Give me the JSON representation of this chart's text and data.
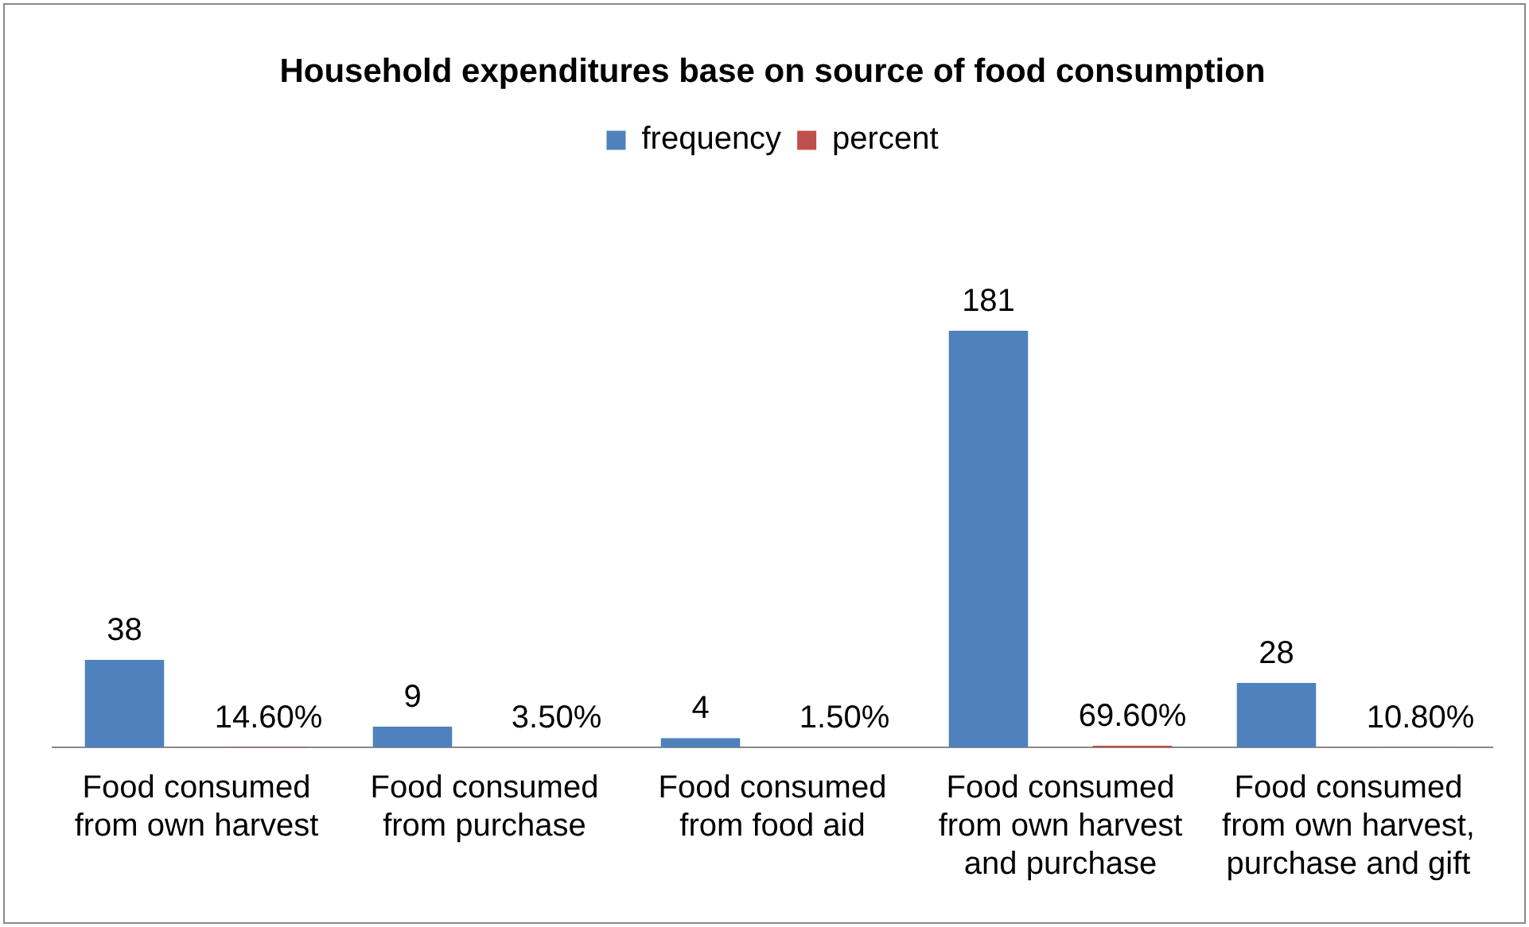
{
  "chart_data": {
    "type": "bar",
    "title": "Household expenditures base on source of food consumption",
    "categories": [
      "Food consumed from own harvest",
      "Food consumed from purchase",
      "Food consumed from food aid",
      "Food consumed from  own harvest  and purchase",
      "Food consumed from own harvest, purchase and gift"
    ],
    "series": [
      {
        "name": "frequency",
        "color": "#4f81bd",
        "values": [
          38,
          9,
          4,
          181,
          28
        ],
        "value_labels": [
          "38",
          "9",
          "4",
          "181",
          "28"
        ]
      },
      {
        "name": "percent",
        "color": "#c0504d",
        "values": [
          0.146,
          0.035,
          0.015,
          0.696,
          0.108
        ],
        "value_labels": [
          "14.60%",
          "3.50%",
          "1.50%",
          "69.60%",
          "10.80%"
        ]
      }
    ],
    "legend": "top",
    "grid": false,
    "tick_labels": "x"
  }
}
